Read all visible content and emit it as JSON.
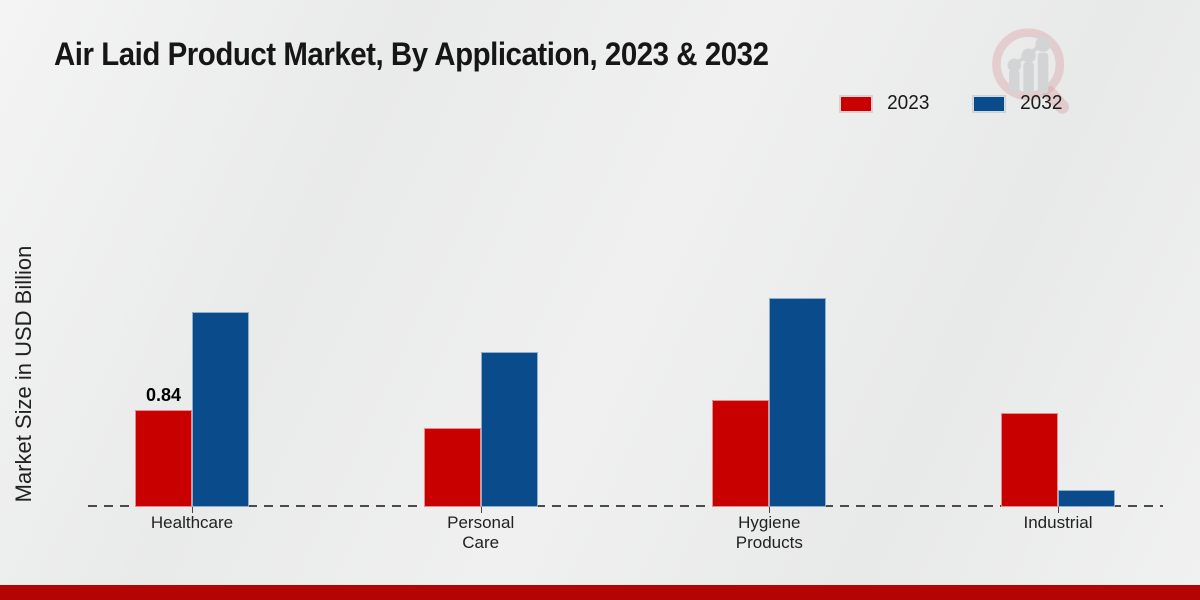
{
  "chart_data": {
    "type": "bar",
    "title": "Air Laid Product Market, By Application, 2023 & 2032",
    "ylabel": "Market Size in USD Billion",
    "xlabel": "",
    "categories": [
      "Healthcare",
      "Personal\nCare",
      "Hygiene\nProducts",
      "Industrial"
    ],
    "series": [
      {
        "name": "2023",
        "color": "#c80000",
        "values": [
          0.84,
          0.68,
          0.92,
          0.81
        ]
      },
      {
        "name": "2032",
        "color": "#0a4b8c",
        "values": [
          1.68,
          1.34,
          1.8,
          0.15
        ]
      }
    ],
    "annotations": [
      {
        "series": "2023",
        "category_index": 0,
        "text": "0.84"
      }
    ],
    "ylim": [
      0,
      2.0
    ],
    "legend_position": "top-right",
    "grid": false,
    "baseline_style": "dashed"
  },
  "branding": {
    "watermark_icon": "magnifier-bar-chart-logo",
    "footer_bar_color": "#b50404"
  }
}
